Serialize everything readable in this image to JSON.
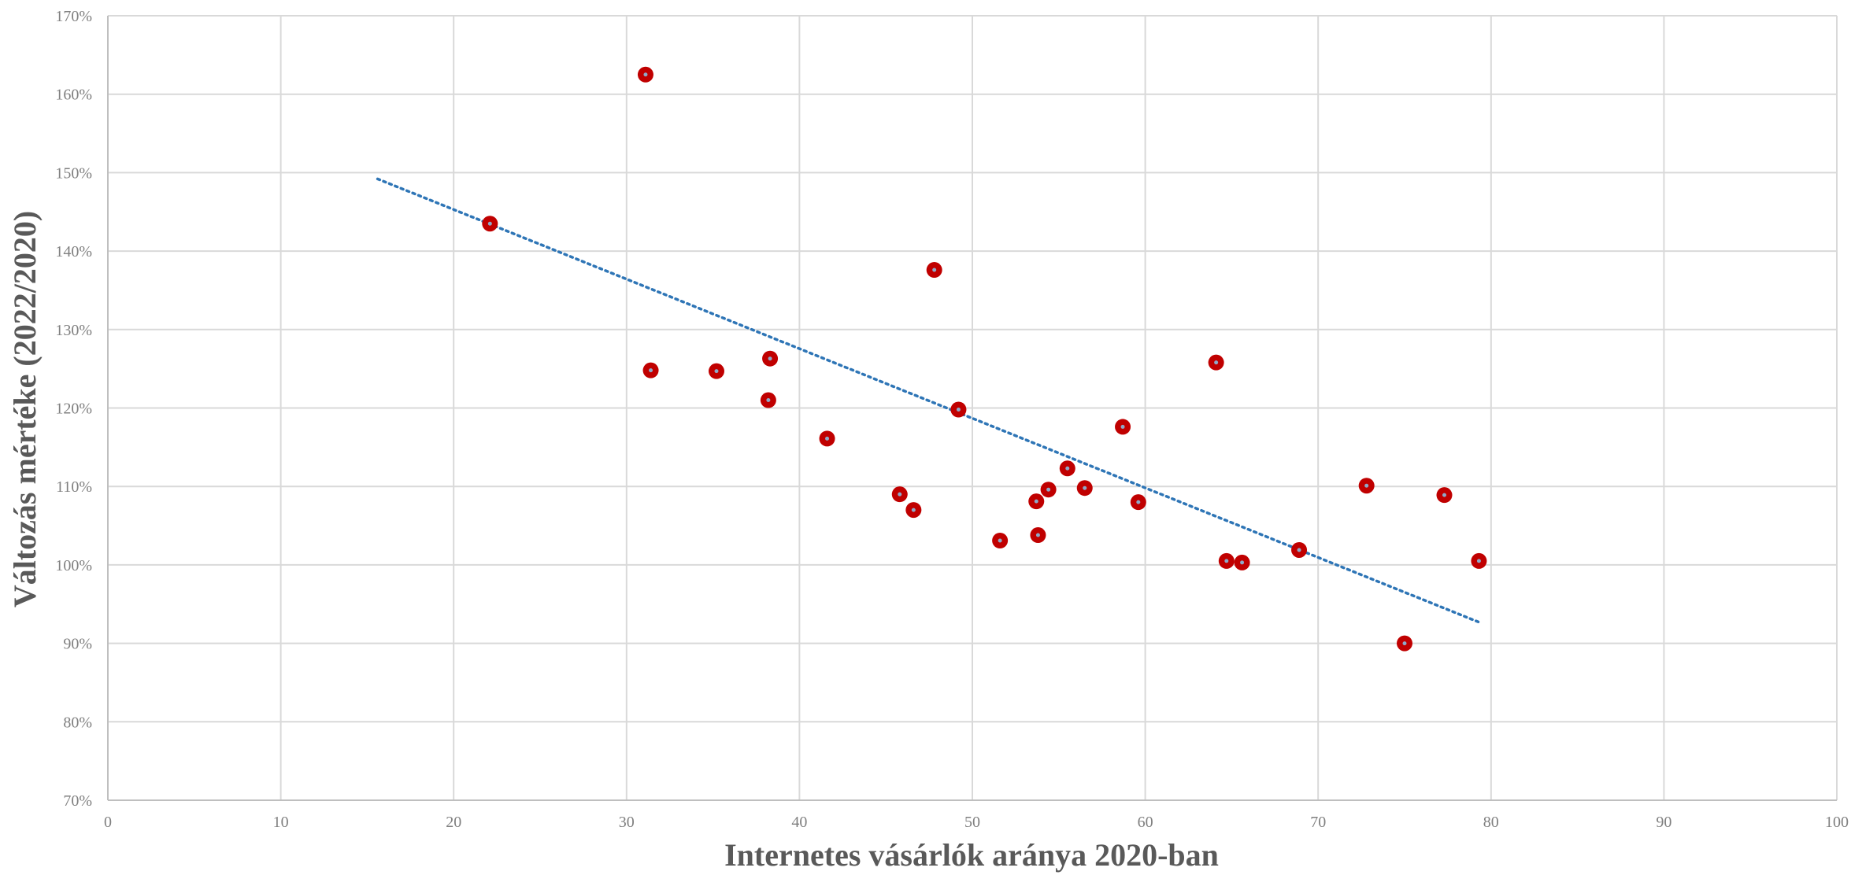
{
  "chart_data": {
    "type": "scatter",
    "title": "",
    "xlabel": "Internetes vásárlók aránya 2020-ban",
    "ylabel": "Változás mértéke (2022/2020)",
    "xlim": [
      0,
      100
    ],
    "ylim": [
      0.7,
      1.7
    ],
    "x_ticks": [
      0,
      10,
      20,
      30,
      40,
      50,
      60,
      70,
      80,
      90,
      100
    ],
    "x_tick_labels": [
      "0",
      "10",
      "20",
      "30",
      "40",
      "50",
      "60",
      "70",
      "80",
      "90",
      "100"
    ],
    "y_ticks": [
      0.7,
      0.8,
      0.9,
      1.0,
      1.1,
      1.2,
      1.3,
      1.4,
      1.5,
      1.6,
      1.7
    ],
    "y_tick_labels": [
      "70%",
      "80%",
      "90%",
      "100%",
      "110%",
      "120%",
      "130%",
      "140%",
      "150%",
      "160%",
      "170%"
    ],
    "grid": true,
    "legend": "none",
    "points": [
      {
        "x": 22.1,
        "y": 1.435
      },
      {
        "x": 31.1,
        "y": 1.625
      },
      {
        "x": 31.4,
        "y": 1.248
      },
      {
        "x": 35.2,
        "y": 1.247
      },
      {
        "x": 38.2,
        "y": 1.21
      },
      {
        "x": 38.3,
        "y": 1.263
      },
      {
        "x": 41.6,
        "y": 1.161
      },
      {
        "x": 45.8,
        "y": 1.09
      },
      {
        "x": 46.6,
        "y": 1.07
      },
      {
        "x": 47.8,
        "y": 1.376
      },
      {
        "x": 49.2,
        "y": 1.198
      },
      {
        "x": 51.6,
        "y": 1.031
      },
      {
        "x": 53.7,
        "y": 1.081
      },
      {
        "x": 53.8,
        "y": 1.038
      },
      {
        "x": 54.4,
        "y": 1.096
      },
      {
        "x": 55.5,
        "y": 1.123
      },
      {
        "x": 56.5,
        "y": 1.098
      },
      {
        "x": 58.7,
        "y": 1.176
      },
      {
        "x": 59.6,
        "y": 1.08
      },
      {
        "x": 64.1,
        "y": 1.258
      },
      {
        "x": 64.7,
        "y": 1.005
      },
      {
        "x": 65.6,
        "y": 1.003
      },
      {
        "x": 68.9,
        "y": 1.019
      },
      {
        "x": 72.8,
        "y": 1.101
      },
      {
        "x": 75.0,
        "y": 0.9
      },
      {
        "x": 77.3,
        "y": 1.089
      },
      {
        "x": 79.3,
        "y": 1.005
      }
    ],
    "trendline": {
      "type": "linear",
      "style": "dotted",
      "color": "#2e75b6",
      "from": {
        "x": 15.6,
        "y": 1.492
      },
      "to": {
        "x": 79.3,
        "y": 0.927
      }
    },
    "marker_color": "#c00000",
    "marker_center_color": "#8fa9c8",
    "grid_color": "#d9d9d9"
  }
}
